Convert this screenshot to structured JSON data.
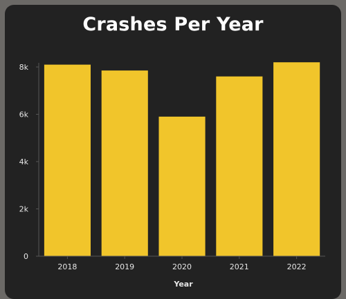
{
  "chart_data": {
    "type": "bar",
    "title": "Crashes Per Year",
    "xlabel": "Year",
    "ylabel": "",
    "categories": [
      "2018",
      "2019",
      "2020",
      "2021",
      "2022"
    ],
    "values": [
      8100,
      7850,
      5900,
      7600,
      8200
    ],
    "ylim": [
      0,
      8000
    ],
    "yticks": [
      0,
      2000,
      4000,
      6000,
      8000
    ],
    "ytick_labels": [
      "0",
      "2k",
      "4k",
      "6k",
      "8k"
    ],
    "grid": false,
    "legend": "none",
    "colors": {
      "bar": "#f1c52b",
      "background": "#222222",
      "text": "#e6e6e6",
      "title": "#ffffff"
    }
  }
}
